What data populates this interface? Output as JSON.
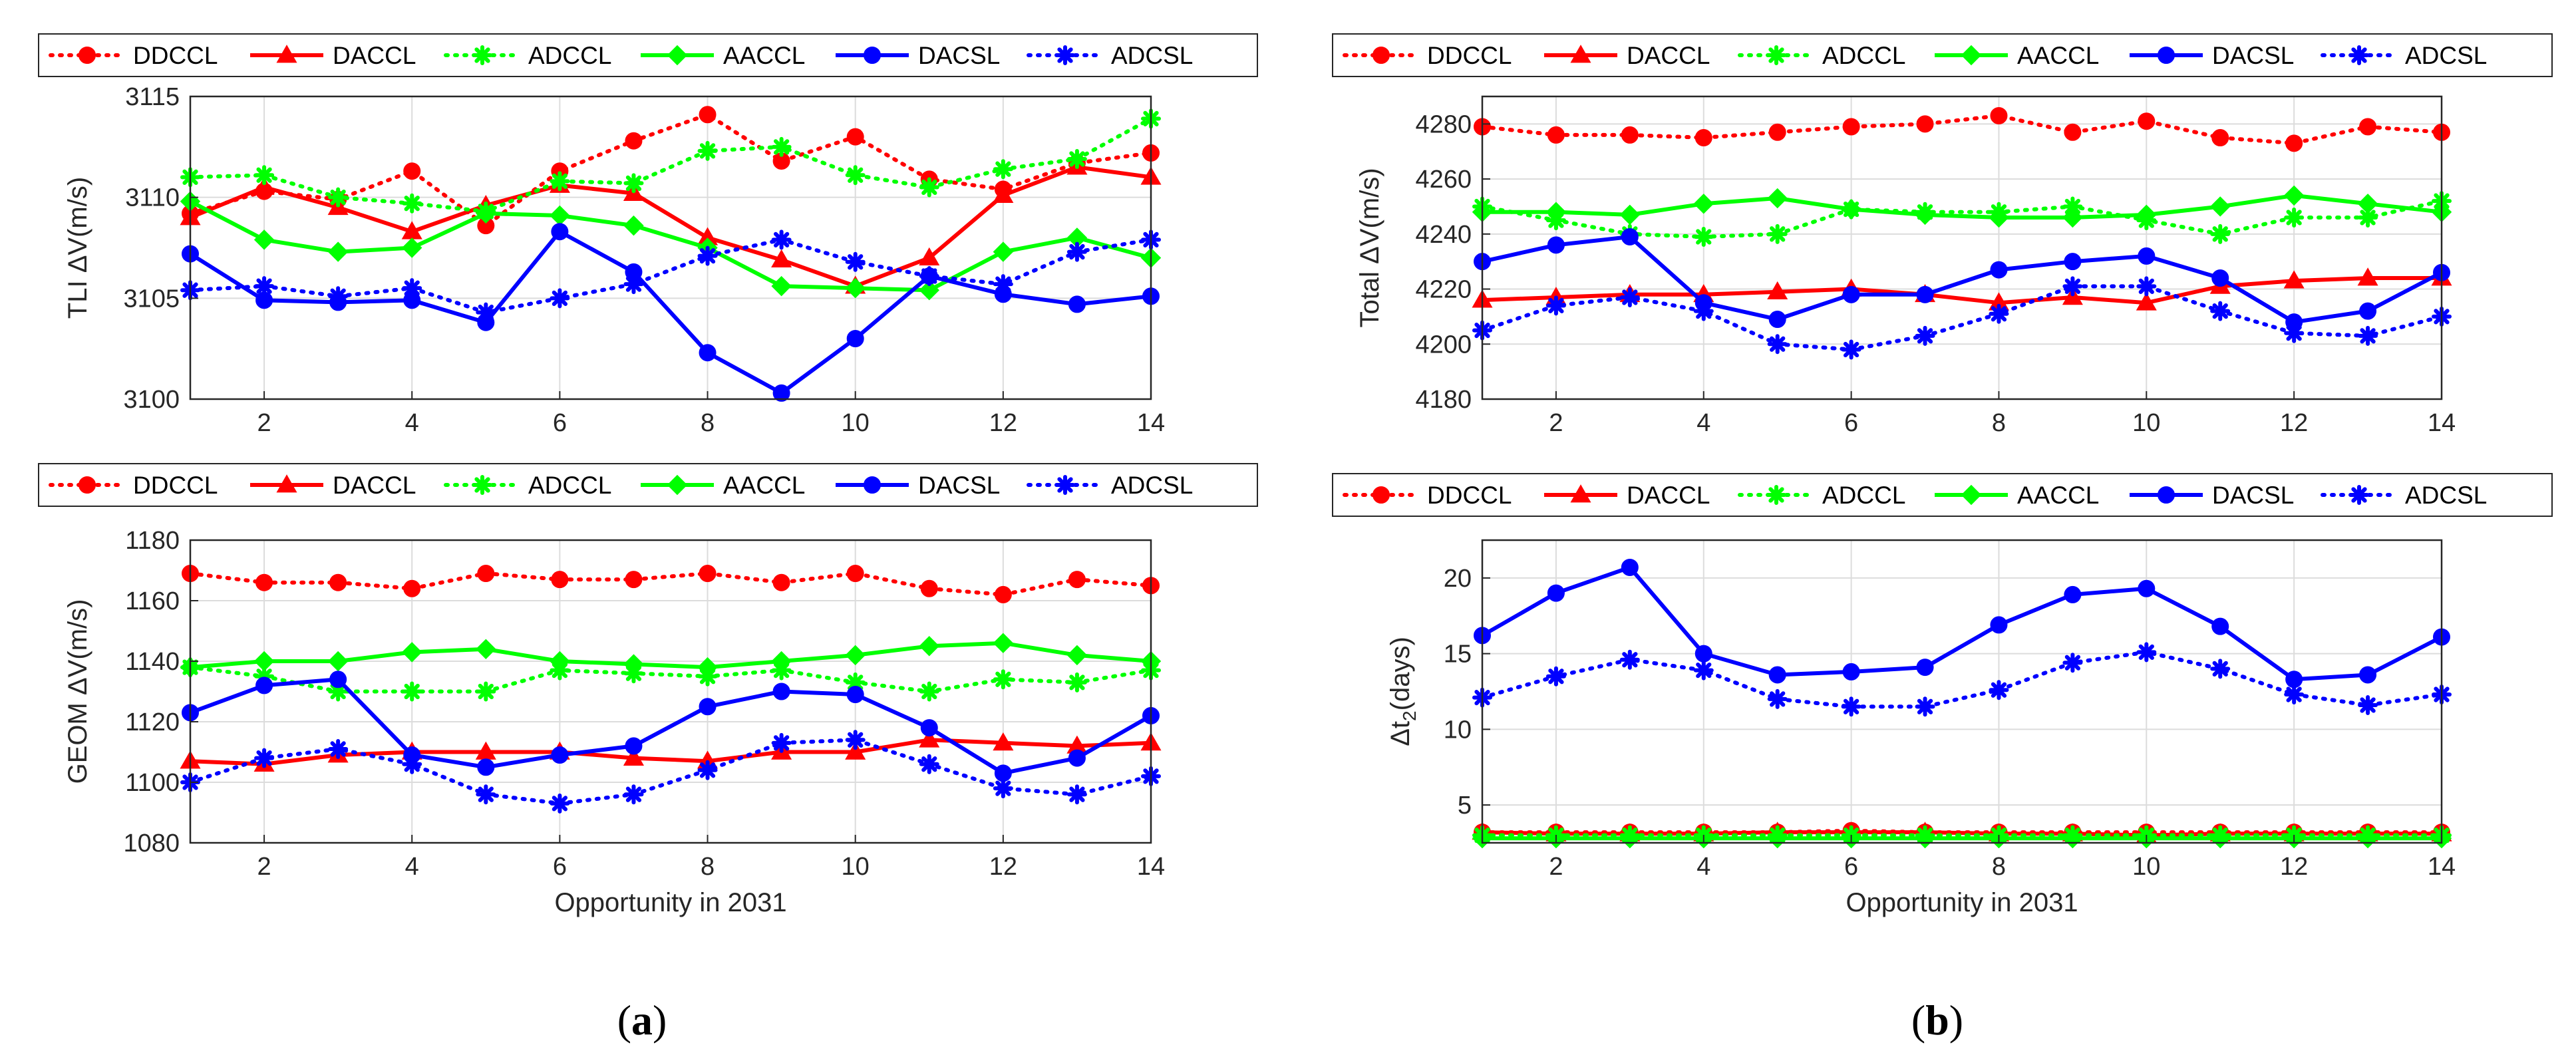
{
  "figure": {
    "panel_labels": [
      {
        "open": "(",
        "letter": "a",
        "close": ")"
      },
      {
        "open": "(",
        "letter": "b",
        "close": ")"
      }
    ]
  },
  "series_styles": [
    {
      "name": "DDCCL",
      "color": "#ff0000",
      "dash": "dotted",
      "marker": "circle"
    },
    {
      "name": "DACCL",
      "color": "#ff0000",
      "dash": "solid",
      "marker": "triangle"
    },
    {
      "name": "ADCCL",
      "color": "#00ff00",
      "dash": "dotted",
      "marker": "asterisk"
    },
    {
      "name": "AACCL",
      "color": "#00ff00",
      "dash": "solid",
      "marker": "diamond"
    },
    {
      "name": "DACSL",
      "color": "#0000ff",
      "dash": "solid",
      "marker": "circle"
    },
    {
      "name": "ADCSL",
      "color": "#0000ff",
      "dash": "dotted",
      "marker": "asterisk"
    }
  ],
  "chart_data": [
    {
      "type": "line",
      "id": "tli",
      "panel": "a",
      "ylabel": "TLI ΔV(m/s)",
      "xlabel": "",
      "x": [
        1,
        2,
        3,
        4,
        5,
        6,
        7,
        8,
        9,
        10,
        11,
        12,
        13,
        14
      ],
      "xlim": [
        1,
        14
      ],
      "xticks": [
        2,
        4,
        6,
        8,
        10,
        12,
        14
      ],
      "ylim": [
        3100,
        3115
      ],
      "yticks": [
        3100,
        3105,
        3110,
        3115
      ],
      "grid": true,
      "legend_position": "top",
      "series": [
        {
          "name": "DDCCL",
          "values": [
            3109.2,
            3110.3,
            3109.9,
            3111.3,
            3108.6,
            3111.3,
            3112.8,
            3114.1,
            3111.8,
            3113.0,
            3110.9,
            3110.4,
            3111.7,
            3112.2
          ]
        },
        {
          "name": "DACCL",
          "values": [
            3109.0,
            3110.5,
            3109.5,
            3108.3,
            3109.6,
            3110.6,
            3110.2,
            3108.0,
            3106.9,
            3105.6,
            3107.0,
            3110.1,
            3111.5,
            3111.0
          ]
        },
        {
          "name": "ADCCL",
          "values": [
            3111.0,
            3111.1,
            3110.0,
            3109.7,
            3109.3,
            3110.8,
            3110.7,
            3112.3,
            3112.5,
            3111.1,
            3110.5,
            3111.4,
            3111.9,
            3113.9
          ]
        },
        {
          "name": "AACCL",
          "values": [
            3109.8,
            3107.9,
            3107.3,
            3107.5,
            3109.2,
            3109.1,
            3108.6,
            3107.5,
            3105.6,
            3105.5,
            3105.4,
            3107.3,
            3108.0,
            3107.0
          ]
        },
        {
          "name": "DACSL",
          "values": [
            3107.2,
            3104.9,
            3104.8,
            3104.9,
            3103.8,
            3108.3,
            3106.3,
            3102.3,
            3100.3,
            3103.0,
            3106.1,
            3105.2,
            3104.7,
            3105.1
          ]
        },
        {
          "name": "ADCSL",
          "values": [
            3105.4,
            3105.6,
            3105.1,
            3105.5,
            3104.3,
            3105.0,
            3105.7,
            3107.1,
            3107.9,
            3106.8,
            3106.1,
            3105.7,
            3107.3,
            3107.9
          ]
        }
      ]
    },
    {
      "type": "line",
      "id": "geom",
      "panel": "a",
      "ylabel": "GEOM ΔV(m/s)",
      "xlabel": "Opportunity in 2031",
      "x": [
        1,
        2,
        3,
        4,
        5,
        6,
        7,
        8,
        9,
        10,
        11,
        12,
        13,
        14
      ],
      "xlim": [
        1,
        14
      ],
      "xticks": [
        2,
        4,
        6,
        8,
        10,
        12,
        14
      ],
      "ylim": [
        1080,
        1180
      ],
      "yticks": [
        1080,
        1100,
        1120,
        1140,
        1160,
        1180
      ],
      "grid": true,
      "legend_position": "top",
      "series": [
        {
          "name": "DDCCL",
          "values": [
            1169,
            1166,
            1166,
            1164,
            1169,
            1167,
            1167,
            1169,
            1166,
            1169,
            1164,
            1162,
            1167,
            1165
          ]
        },
        {
          "name": "DACCL",
          "values": [
            1107,
            1106,
            1109,
            1110,
            1110,
            1110,
            1108,
            1107,
            1110,
            1110,
            1114,
            1113,
            1112,
            1113
          ]
        },
        {
          "name": "ADCCL",
          "values": [
            1138,
            1135,
            1130,
            1130,
            1130,
            1137,
            1136,
            1135,
            1137,
            1133,
            1130,
            1134,
            1133,
            1137
          ]
        },
        {
          "name": "AACCL",
          "values": [
            1138,
            1140,
            1140,
            1143,
            1144,
            1140,
            1139,
            1138,
            1140,
            1142,
            1145,
            1146,
            1142,
            1140
          ]
        },
        {
          "name": "DACSL",
          "values": [
            1123,
            1132,
            1134,
            1109,
            1105,
            1109,
            1112,
            1125,
            1130,
            1129,
            1118,
            1103,
            1108,
            1122
          ]
        },
        {
          "name": "ADCSL",
          "values": [
            1100,
            1108,
            1111,
            1106,
            1096,
            1093,
            1096,
            1104,
            1113,
            1114,
            1106,
            1098,
            1096,
            1102
          ]
        }
      ]
    },
    {
      "type": "line",
      "id": "total",
      "panel": "b",
      "ylabel": "Total ΔV(m/s)",
      "xlabel": "",
      "x": [
        1,
        2,
        3,
        4,
        5,
        6,
        7,
        8,
        9,
        10,
        11,
        12,
        13,
        14
      ],
      "xlim": [
        1,
        14
      ],
      "xticks": [
        2,
        4,
        6,
        8,
        10,
        12,
        14
      ],
      "ylim": [
        4180,
        4290
      ],
      "yticks": [
        4180,
        4200,
        4220,
        4240,
        4260,
        4280
      ],
      "grid": true,
      "legend_position": "top",
      "series": [
        {
          "name": "DDCCL",
          "values": [
            4279,
            4276,
            4276,
            4275,
            4277,
            4279,
            4280,
            4283,
            4277,
            4281,
            4275,
            4273,
            4279,
            4277
          ]
        },
        {
          "name": "DACCL",
          "values": [
            4216,
            4217,
            4218,
            4218,
            4219,
            4220,
            4218,
            4215,
            4217,
            4215,
            4221,
            4223,
            4224,
            4224
          ]
        },
        {
          "name": "ADCCL",
          "values": [
            4250,
            4245,
            4240,
            4239,
            4240,
            4249,
            4248,
            4248,
            4250,
            4245,
            4240,
            4246,
            4246,
            4252
          ]
        },
        {
          "name": "AACCL",
          "values": [
            4248,
            4248,
            4247,
            4251,
            4253,
            4249,
            4247,
            4246,
            4246,
            4247,
            4250,
            4254,
            4251,
            4248
          ]
        },
        {
          "name": "DACSL",
          "values": [
            4230,
            4236,
            4239,
            4215,
            4209,
            4218,
            4218,
            4227,
            4230,
            4232,
            4224,
            4208,
            4212,
            4226
          ]
        },
        {
          "name": "ADCSL",
          "values": [
            4205,
            4214,
            4217,
            4212,
            4200,
            4198,
            4203,
            4211,
            4221,
            4221,
            4212,
            4204,
            4203,
            4210
          ]
        }
      ]
    },
    {
      "type": "line",
      "id": "dt2",
      "panel": "b",
      "ylabel_main": "Δt",
      "ylabel_sub": "2",
      "ylabel_tail": "(days)",
      "xlabel": "Opportunity in 2031",
      "x": [
        1,
        2,
        3,
        4,
        5,
        6,
        7,
        8,
        9,
        10,
        11,
        12,
        13,
        14
      ],
      "xlim": [
        1,
        14
      ],
      "xticks": [
        2,
        4,
        6,
        8,
        10,
        12,
        14
      ],
      "ylim": [
        2.5,
        22.5
      ],
      "yticks": [
        5,
        10,
        15,
        20
      ],
      "grid": true,
      "legend_position": "top",
      "series": [
        {
          "name": "DDCCL",
          "values": [
            3.2,
            3.2,
            3.2,
            3.2,
            3.2,
            3.3,
            3.2,
            3.2,
            3.2,
            3.2,
            3.2,
            3.2,
            3.2,
            3.2
          ]
        },
        {
          "name": "DACCL",
          "values": [
            3.2,
            3.1,
            3.1,
            3.1,
            3.2,
            3.2,
            3.2,
            3.1,
            3.1,
            3.0,
            3.1,
            3.1,
            3.1,
            3.1
          ]
        },
        {
          "name": "ADCCL",
          "values": [
            3.0,
            3.0,
            3.0,
            3.0,
            3.0,
            3.0,
            3.0,
            3.0,
            3.0,
            3.0,
            3.0,
            3.0,
            3.0,
            3.0
          ]
        },
        {
          "name": "AACCL",
          "values": [
            2.8,
            2.8,
            2.8,
            2.8,
            2.8,
            2.8,
            2.8,
            2.8,
            2.8,
            2.8,
            2.8,
            2.8,
            2.8,
            2.8
          ]
        },
        {
          "name": "DACSL",
          "values": [
            16.2,
            19.0,
            20.7,
            15.0,
            13.6,
            13.8,
            14.1,
            16.9,
            18.9,
            19.3,
            16.8,
            13.3,
            13.6,
            16.1
          ]
        },
        {
          "name": "ADCSL",
          "values": [
            12.1,
            13.5,
            14.6,
            13.9,
            12.0,
            11.5,
            11.5,
            12.6,
            14.4,
            15.1,
            14.0,
            12.3,
            11.6,
            12.3
          ]
        }
      ]
    }
  ]
}
